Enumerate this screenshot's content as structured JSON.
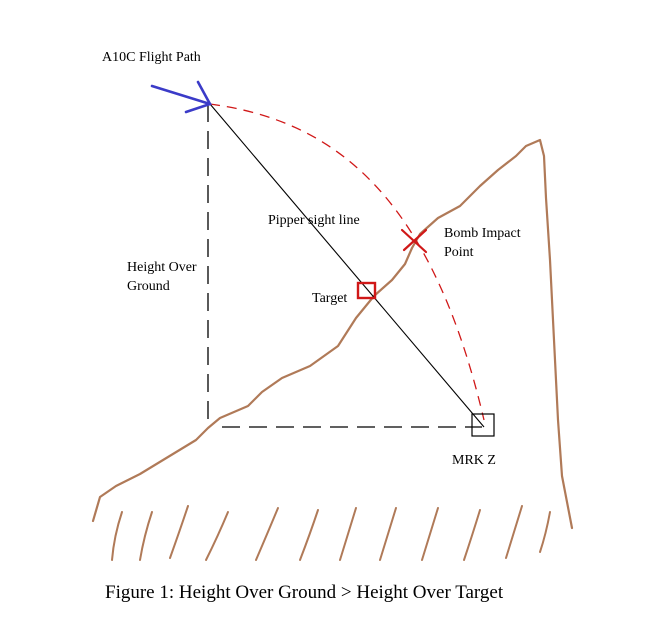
{
  "labels": {
    "flight_path": "A10C Flight Path",
    "height_over_ground_1": "Height Over",
    "height_over_ground_2": "Ground",
    "pipper_sight_line": "Pipper sight line",
    "bomb_impact_1": "Bomb Impact",
    "bomb_impact_2": "Point",
    "target": "Target",
    "mrk_z": "MRK Z"
  },
  "caption": "Figure 1: Height Over Ground > Height Over Target",
  "colors": {
    "flight_path": "#3b3bc8",
    "terrain": "#b07a58",
    "bomb_trajectory": "#d01818",
    "target_box": "#d01818",
    "lines": "#000000"
  }
}
